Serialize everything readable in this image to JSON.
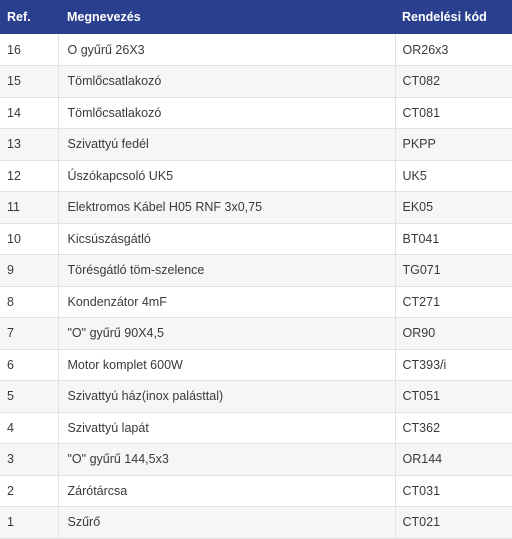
{
  "table": {
    "headers": {
      "ref": "Ref.",
      "name": "Megnevezés",
      "code": "Rendelési kód"
    },
    "header_bg": "#2b3f8f",
    "rows": [
      {
        "ref": "16",
        "name": "O gyűrű 26X3",
        "code": "OR26x3"
      },
      {
        "ref": "15",
        "name": "Tömlőcsatlakozó",
        "code": "CT082"
      },
      {
        "ref": "14",
        "name": "Tömlőcsatlakozó",
        "code": "CT081"
      },
      {
        "ref": "13",
        "name": "Szivattyú fedél",
        "code": "PKPP"
      },
      {
        "ref": "12",
        "name": "Úszókapcsoló UK5",
        "code": "UK5"
      },
      {
        "ref": "11",
        "name": "Elektromos Kábel H05 RNF 3x0,75",
        "code": "EK05"
      },
      {
        "ref": "10",
        "name": "Kicsúszásgátló",
        "code": "BT041"
      },
      {
        "ref": "9",
        "name": "Törésgátló töm-szelence",
        "code": "TG071"
      },
      {
        "ref": "8",
        "name": "Kondenzátor 4mF",
        "code": "CT271"
      },
      {
        "ref": "7",
        "name": "\"O\" gyűrű 90X4,5",
        "code": "OR90"
      },
      {
        "ref": "6",
        "name": "Motor komplet 600W",
        "code": "CT393/i"
      },
      {
        "ref": "5",
        "name": "Szivattyú ház(inox palásttal)",
        "code": "CT051"
      },
      {
        "ref": "4",
        "name": "Szivattyú lapát",
        "code": "CT362"
      },
      {
        "ref": "3",
        "name": "\"O\" gyűrű 144,5x3",
        "code": "OR144"
      },
      {
        "ref": "2",
        "name": "Zárótárcsa",
        "code": "CT031"
      },
      {
        "ref": "1",
        "name": "Szűrő",
        "code": "CT021"
      }
    ]
  }
}
